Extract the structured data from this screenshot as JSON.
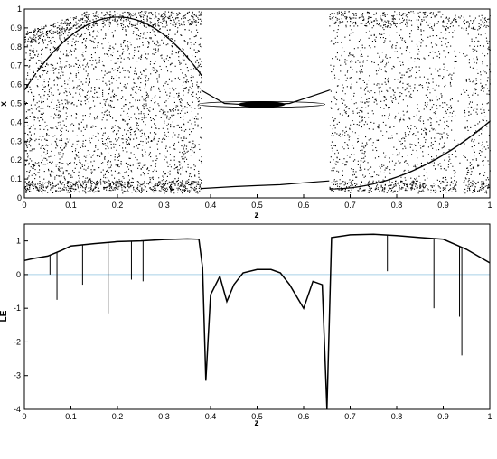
{
  "chart_data": [
    {
      "type": "scatter",
      "title": "",
      "xlabel": "z",
      "ylabel": "x",
      "xlim": [
        0,
        1
      ],
      "ylim": [
        0,
        1
      ],
      "xticks": [
        "0",
        "0.1",
        "0.2",
        "0.3",
        "0.4",
        "0.5",
        "0.6",
        "0.7",
        "0.8",
        "0.9",
        "1"
      ],
      "yticks": [
        "0",
        "0.1",
        "0.2",
        "0.3",
        "0.4",
        "0.5",
        "0.6",
        "0.7",
        "0.8",
        "0.9",
        "1"
      ],
      "grid": false,
      "description_series": [
        {
          "name": "chaotic band",
          "z_range": [
            0,
            0.38
          ],
          "x_range": [
            0.03,
            0.96
          ]
        },
        {
          "name": "periodic window lower branch",
          "z": [
            0.38,
            0.45,
            0.5,
            0.55,
            0.6,
            0.655
          ],
          "x": [
            0.05,
            0.06,
            0.065,
            0.07,
            0.08,
            0.09
          ]
        },
        {
          "name": "periodic window upper branch",
          "z": [
            0.38,
            0.43,
            0.5,
            0.57,
            0.62,
            0.655
          ],
          "x": [
            0.57,
            0.5,
            0.49,
            0.5,
            0.54,
            0.57
          ]
        },
        {
          "name": "chaotic band",
          "z_range": [
            0.655,
            1.0
          ],
          "x_range": [
            0.03,
            0.97
          ]
        }
      ],
      "point_color": "#000000"
    },
    {
      "type": "line",
      "title": "",
      "xlabel": "z",
      "ylabel": "LE",
      "xlim": [
        0,
        1
      ],
      "ylim": [
        -4,
        1.5
      ],
      "xticks": [
        "0",
        "0.1",
        "0.2",
        "0.3",
        "0.4",
        "0.5",
        "0.6",
        "0.7",
        "0.8",
        "0.9",
        "1"
      ],
      "yticks": [
        "-4",
        "-3",
        "-2",
        "-1",
        "0",
        "1"
      ],
      "grid": false,
      "reference_line": {
        "y": 0,
        "color": "#a9d0e8"
      },
      "series": [
        {
          "name": "",
          "color": "#000000",
          "x": [
            0,
            0.02,
            0.05,
            0.08,
            0.1,
            0.15,
            0.2,
            0.25,
            0.3,
            0.35,
            0.375,
            0.383,
            0.39,
            0.4,
            0.42,
            0.435,
            0.45,
            0.47,
            0.5,
            0.53,
            0.55,
            0.57,
            0.6,
            0.62,
            0.64,
            0.65,
            0.66,
            0.7,
            0.75,
            0.8,
            0.85,
            0.9,
            0.95,
            1.0
          ],
          "y": [
            0.42,
            0.48,
            0.55,
            0.72,
            0.85,
            0.92,
            0.98,
            1.0,
            1.04,
            1.06,
            1.05,
            0.2,
            -3.15,
            -0.6,
            -0.05,
            -0.8,
            -0.3,
            0.05,
            0.15,
            0.15,
            0.05,
            -0.3,
            -1.0,
            -0.2,
            -0.3,
            -4.0,
            1.1,
            1.18,
            1.2,
            1.16,
            1.1,
            1.05,
            0.75,
            0.35
          ]
        }
      ],
      "spikes": [
        {
          "z": 0.055,
          "y": 0.0
        },
        {
          "z": 0.07,
          "y": -0.75
        },
        {
          "z": 0.125,
          "y": -0.3
        },
        {
          "z": 0.18,
          "y": -1.15
        },
        {
          "z": 0.23,
          "y": -0.15
        },
        {
          "z": 0.255,
          "y": -0.2
        },
        {
          "z": 0.78,
          "y": 0.1
        },
        {
          "z": 0.88,
          "y": -1.0
        },
        {
          "z": 0.935,
          "y": -1.25
        },
        {
          "z": 0.94,
          "y": -2.4
        }
      ]
    }
  ]
}
